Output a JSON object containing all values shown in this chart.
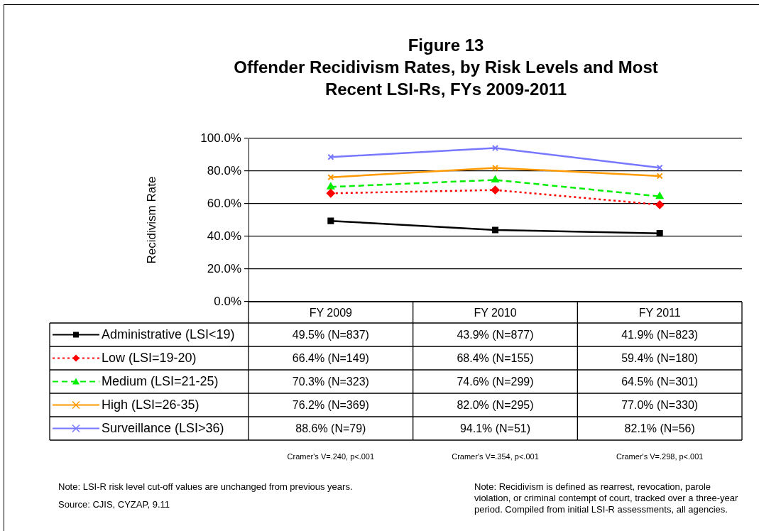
{
  "chart_data": {
    "type": "line",
    "title": "Figure 13",
    "subtitle": "Offender Recidivism Rates, by Risk Levels and Most Recent LSI-Rs, FYs 2009-2011",
    "ylabel": "Recidivism Rate",
    "categories": [
      "FY 2009",
      "FY 2010",
      "FY 2011"
    ],
    "ylim": [
      0,
      100
    ],
    "yticks": [
      {
        "value": 0,
        "label": "0.0%"
      },
      {
        "value": 20,
        "label": "20.0%"
      },
      {
        "value": 40,
        "label": "40.0%"
      },
      {
        "value": 60,
        "label": "60.0%"
      },
      {
        "value": 80,
        "label": "80.0%"
      },
      {
        "value": 100,
        "label": "100.0%"
      }
    ],
    "grid": "y",
    "legend": "bottom",
    "data_labels": true,
    "series": [
      {
        "name": "Administrative (LSI<19)",
        "color": "#000000",
        "marker": "square",
        "line_style": "solid",
        "values": [
          49.5,
          43.9,
          41.9
        ],
        "value_labels": [
          "49.5% (N=837)",
          "43.9% (N=877)",
          "41.9% (N=823)"
        ]
      },
      {
        "name": "Low (LSI=19-20)",
        "color": "#ff0000",
        "marker": "diamond",
        "line_style": "dotted",
        "values": [
          66.4,
          68.4,
          59.4
        ],
        "value_labels": [
          "66.4% (N=149)",
          "68.4% (N=155)",
          "59.4% (N=180)"
        ]
      },
      {
        "name": "Medium (LSI=21-25)",
        "color": "#00ee00",
        "marker": "triangle",
        "line_style": "dashed",
        "values": [
          70.3,
          74.6,
          64.5
        ],
        "value_labels": [
          "70.3% (N=323)",
          "74.6% (N=299)",
          "64.5% (N=301)"
        ]
      },
      {
        "name": "High (LSI=26-35)",
        "color": "#ff9900",
        "marker": "cross",
        "line_style": "solid",
        "values": [
          76.2,
          82.0,
          77.0
        ],
        "value_labels": [
          "76.2% (N=369)",
          "82.0% (N=295)",
          "77.0% (N=330)"
        ]
      },
      {
        "name": "Surveillance (LSI>36)",
        "color": "#7777ff",
        "marker": "cross",
        "line_style": "solid",
        "values": [
          88.6,
          94.1,
          82.1
        ],
        "value_labels": [
          "88.6% (N=79)",
          "94.1% (N=51)",
          "82.1% (N=56)"
        ]
      }
    ],
    "annotations": [
      "Cramer's V=.240, p<.001",
      "Cramer's V=.354, p<.001",
      "Cramer's V=.298, p<.001",
      "Note: LSI-R risk level cut-off values are unchanged from previous years.",
      "Source: CJIS, CYZAP, 9.11",
      "Note: Recidivism is defined as rearrest, revocation, parole violation, or criminal contempt of court, tracked over a three-year period. Compiled from initial LSI-R assessments, all agencies."
    ]
  }
}
